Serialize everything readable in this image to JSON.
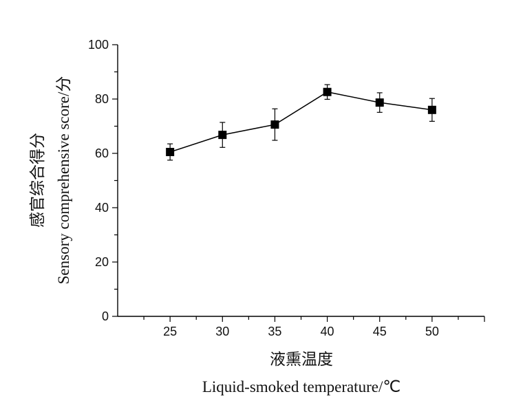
{
  "chart_data": {
    "type": "line",
    "x": [
      25,
      30,
      35,
      40,
      45,
      50
    ],
    "series": [
      {
        "values": [
          60.5,
          66.8,
          70.6,
          82.6,
          78.7,
          76.0
        ],
        "error": [
          3.0,
          4.6,
          5.8,
          2.7,
          3.6,
          4.2
        ],
        "color": "#000000",
        "marker": "square"
      }
    ],
    "xlabel_cn": "液熏温度",
    "xlabel_en": "Liquid-smoked temperature/℃",
    "ylabel_cn": "感官综合得分",
    "ylabel_en": "Sensory comprehensive score/分",
    "xlim": [
      20,
      55
    ],
    "ylim": [
      0,
      100
    ],
    "xticks": [
      25,
      30,
      35,
      40,
      45,
      50
    ],
    "yticks": [
      0,
      20,
      40,
      60,
      80,
      100
    ],
    "grid": false
  }
}
